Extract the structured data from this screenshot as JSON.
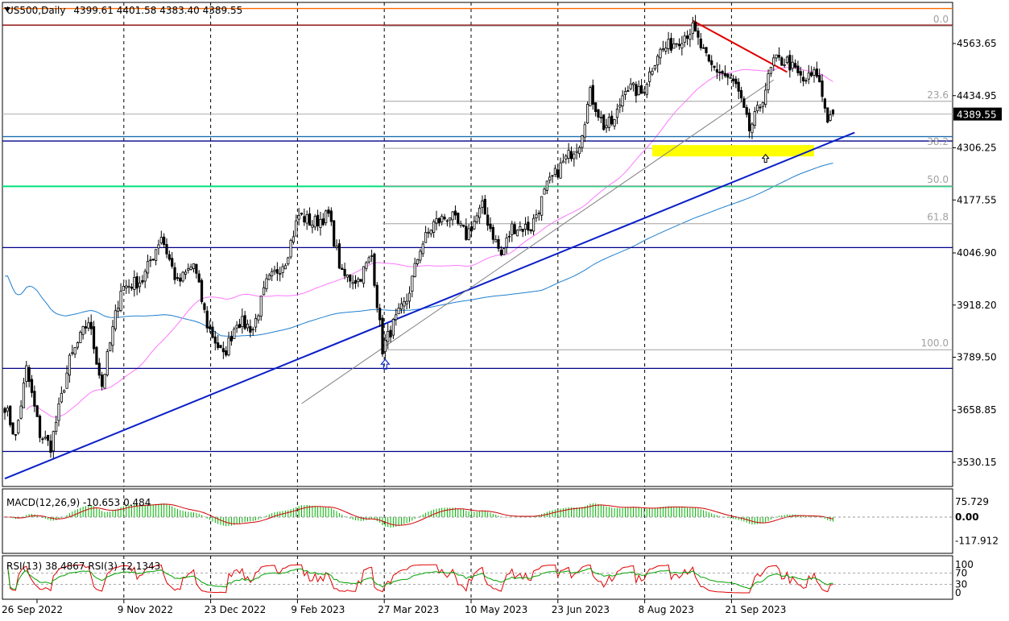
{
  "chart_data": {
    "type": "candlestick",
    "symbol_label": "US500,Daily",
    "ohlc_label": "4399.61 4401.58 4383.40 4389.55",
    "current_price": 4389.55,
    "current_price_label": "4389.55",
    "price_ticks": [
      {
        "value": 4563.65,
        "label": "4563.65"
      },
      {
        "value": 4434.95,
        "label": "4434.95"
      },
      {
        "value": 4306.25,
        "label": "4306.25"
      },
      {
        "value": 4177.55,
        "label": "4177.55"
      },
      {
        "value": 4046.9,
        "label": "4046.90"
      },
      {
        "value": 3918.2,
        "label": "3918.20"
      },
      {
        "value": 3789.5,
        "label": "3789.50"
      },
      {
        "value": 3658.85,
        "label": "3658.85"
      },
      {
        "value": 3530.15,
        "label": "3530.15"
      }
    ],
    "date_ticks": [
      "26 Sep 2022",
      "9 Nov 2022",
      "23 Dec 2022",
      "9 Feb 2023",
      "27 Mar 2023",
      "10 May 2023",
      "23 Jun 2023",
      "8 Aug 2023",
      "21 Sep 2023"
    ],
    "bars_per_tick": 32,
    "fib_levels": [
      {
        "label": "0.0",
        "value": 4607
      },
      {
        "label": "23.6",
        "value": 4421
      },
      {
        "label": "38.2",
        "value": 4305
      },
      {
        "label": "50.0",
        "value": 4212
      },
      {
        "label": "61.8",
        "value": 4119
      },
      {
        "label": "100.0",
        "value": 3808
      }
    ],
    "horizontal_levels": [
      {
        "value": 4650,
        "color": "#ff6a00"
      },
      {
        "value": 4609,
        "color": "#8b0000"
      },
      {
        "value": 4323,
        "color": "#00008b"
      },
      {
        "value": 4334,
        "color": "#1e6fb0"
      },
      {
        "value": 4211,
        "color": "#00e07a"
      },
      {
        "value": 4060,
        "color": "#00008b"
      },
      {
        "value": 3762,
        "color": "#00008b"
      },
      {
        "value": 3557,
        "color": "#00008b"
      }
    ],
    "trendlines": [
      {
        "points": [
          [
            0,
            3490
          ],
          [
            315,
            4344
          ]
        ],
        "color": "#0a1ec8"
      },
      {
        "points": [
          [
            255,
            4620
          ],
          [
            290,
            4493
          ]
        ],
        "color": "#e00000"
      },
      {
        "points": [
          [
            110,
            3675
          ],
          [
            285,
            4474
          ]
        ],
        "color": "#808080"
      }
    ],
    "support_zone": {
      "bar_from": 240,
      "bar_to": 300,
      "top": 4313,
      "bottom": 4285,
      "color": "#ffff00"
    },
    "ma_fast_color": "#ff77ff",
    "ma_slow_color": "#1e7fd0",
    "macd": {
      "label": "MACD(12,26,9) -10.653 0.484",
      "ticks": [
        {
          "value": 75.729,
          "label": "75.729"
        },
        {
          "value": 0.0,
          "label": "0.00"
        },
        {
          "value": -117.912,
          "label": "-117.912"
        }
      ],
      "histogram_color": "#00b000",
      "signal_color": "#d00000"
    },
    "rsi": {
      "label": "RSI(13) 38.4867  RSI(3) 12.1343",
      "ticks": [
        {
          "value": 100,
          "label": "100"
        },
        {
          "value": 70,
          "label": "70"
        },
        {
          "value": 30,
          "label": "30"
        },
        {
          "value": 0,
          "label": "0"
        }
      ],
      "rsi13_color": "#00a000",
      "rsi3_color": "#e00000"
    }
  }
}
